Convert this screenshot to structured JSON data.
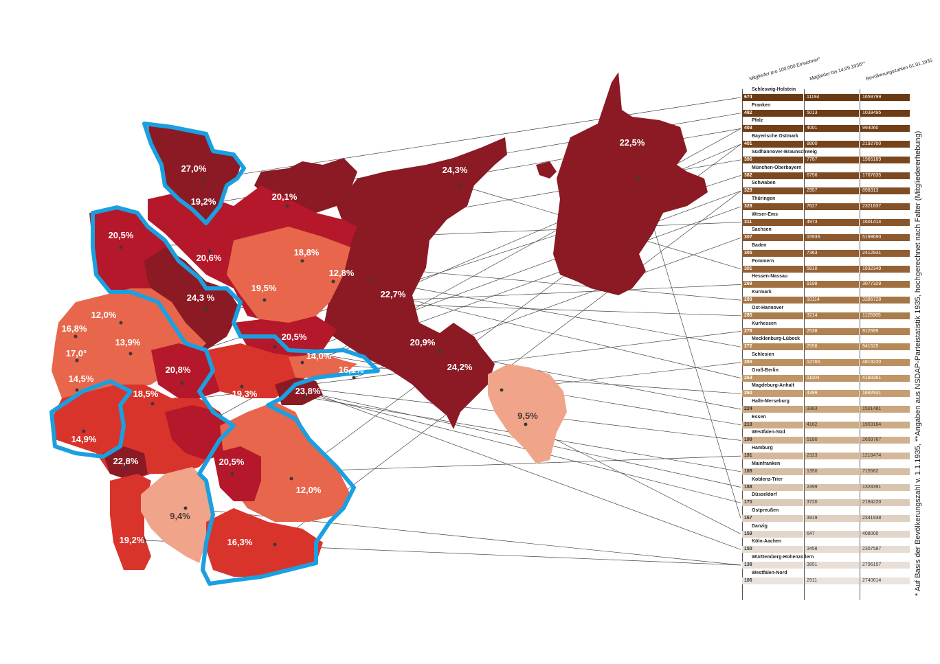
{
  "legend": {
    "col1_header": "Mitglieder pro 100.000 Einwohner*",
    "col2_header": "Mitglieder bis 14.09.1930**",
    "col3_header": "Bevölkerungszahlen 01.01.1935",
    "rows": [
      {
        "name": "Schleswig-Holstein",
        "per100k": "674",
        "members": "11194",
        "population": "1659799",
        "color": "#6b3a12"
      },
      {
        "name": "Franken",
        "per100k": "482",
        "members": "5013",
        "population": "1039495",
        "color": "#6e3d15"
      },
      {
        "name": "Pfalz",
        "per100k": "403",
        "members": "4001",
        "population": "993060",
        "color": "#723f17"
      },
      {
        "name": "Bayerische Ostmark",
        "per100k": "401",
        "members": "8800",
        "population": "2192700",
        "color": "#76431a"
      },
      {
        "name": "Südhannover-Braunschweig",
        "per100k": "396",
        "members": "7787",
        "population": "1965189",
        "color": "#7a461d"
      },
      {
        "name": "München-Oberbayern",
        "per100k": "382",
        "members": "6756",
        "population": "1767635",
        "color": "#7d4920"
      },
      {
        "name": "Schwaben",
        "per100k": "329",
        "members": "2957",
        "population": "898313",
        "color": "#814d23"
      },
      {
        "name": "Thüringen",
        "per100k": "328",
        "members": "7627",
        "population": "2321837",
        "color": "#855126"
      },
      {
        "name": "Weser-Ems",
        "per100k": "311",
        "members": "4973",
        "population": "1601414",
        "color": "#89552a"
      },
      {
        "name": "Sachsen",
        "per100k": "307",
        "members": "15936",
        "population": "5198690",
        "color": "#8d592e"
      },
      {
        "name": "Baden",
        "per100k": "305",
        "members": "7363",
        "population": "2412931",
        "color": "#915d32"
      },
      {
        "name": "Pommern",
        "per100k": "301",
        "members": "5810",
        "population": "1932349",
        "color": "#956136"
      },
      {
        "name": "Hessen-Nassau",
        "per100k": "299",
        "members": "9198",
        "population": "3077329",
        "color": "#a0703f"
      },
      {
        "name": "Kurmark",
        "per100k": "299",
        "members": "10114",
        "population": "3385728",
        "color": "#a57545"
      },
      {
        "name": "Ost-Hannover",
        "per100k": "285",
        "members": "3214",
        "population": "1125965",
        "color": "#aa7b4b"
      },
      {
        "name": "Kurhessen",
        "per100k": "278",
        "members": "2538",
        "population": "912689",
        "color": "#b08151"
      },
      {
        "name": "Mecklenburg-Lübeck",
        "per100k": "272",
        "members": "2556",
        "population": "941525",
        "color": "#b58858"
      },
      {
        "name": "Schlesien",
        "per100k": "265",
        "members": "12765",
        "population": "4819220",
        "color": "#bb8f60"
      },
      {
        "name": "Groß-Berlin",
        "per100k": "263",
        "members": "11004",
        "population": "4189361",
        "color": "#c09668"
      },
      {
        "name": "Magdeburg-Anhalt",
        "per100k": "260",
        "members": "4399",
        "population": "1692931",
        "color": "#c59d70"
      },
      {
        "name": "Halle-Merseburg",
        "per100k": "224",
        "members": "3363",
        "population": "1501481",
        "color": "#c9a67c"
      },
      {
        "name": "Essen",
        "per100k": "219",
        "members": "4162",
        "population": "1903164",
        "color": "#ccac86"
      },
      {
        "name": "Westfalen-Süd",
        "per100k": "198",
        "members": "5180",
        "population": "2609787",
        "color": "#d0b290"
      },
      {
        "name": "Hamburg",
        "per100k": "191",
        "members": "2323",
        "population": "1218474",
        "color": "#d3b89a"
      },
      {
        "name": "Mainfranken",
        "per100k": "189",
        "members": "1350",
        "population": "715562",
        "color": "#d6bea4"
      },
      {
        "name": "Koblenz-Trier",
        "per100k": "188",
        "members": "2499",
        "population": "1328391",
        "color": "#d9c4ae"
      },
      {
        "name": "Düsseldorf",
        "per100k": "170",
        "members": "3720",
        "population": "2194220",
        "color": "#dccab8"
      },
      {
        "name": "Ostpreußen",
        "per100k": "167",
        "members": "3919",
        "population": "2341938",
        "color": "#dfd0c2"
      },
      {
        "name": "Danzig",
        "per100k": "159",
        "members": "647",
        "population": "408000",
        "color": "#e2d6ca"
      },
      {
        "name": "Köln-Aachen",
        "per100k": "150",
        "members": "3458",
        "population": "2307587",
        "color": "#e5dcd2"
      },
      {
        "name": "Württemberg-Hohenzollern",
        "per100k": "138",
        "members": "3851",
        "population": "2796157",
        "color": "#e8e0d8"
      },
      {
        "name": "Westfalen-Nord",
        "per100k": "106",
        "members": "2911",
        "population": "2740614",
        "color": "#ebe4de"
      }
    ]
  },
  "map": {
    "percent_labels": [
      "27,0%",
      "19,2%",
      "20,1%",
      "24,3%",
      "22,5%",
      "20,5%",
      "20,6%",
      "18,8%",
      "12,8%",
      "19,5%",
      "24,3 %",
      "22,7%",
      "12,0%",
      "16,8%",
      "13,9%",
      "17,0°",
      "20,5%",
      "20,9%",
      "14,0%",
      "16,1%",
      "24,2%",
      "20,8%",
      "19,3%",
      "23,8%",
      "14,5%",
      "18,5%",
      "9,5%",
      "14,9%",
      "22,8%",
      "20,5%",
      "12,0%",
      "9,4%",
      "19,2%",
      "16,3%"
    ],
    "colors": {
      "darkest": "#8b1a24",
      "dark": "#b5182b",
      "medium": "#d9342c",
      "light": "#e8664b",
      "lighter": "#f0a58a",
      "border": "#1aa0e0"
    }
  },
  "footnote": "* Auf Basis der Bevölkerungszahl v. 1.1.1935, **Angaben aus NSDAP-Parteistatistik 1935, hochgerechnet nach Falter (Mitgliedererhebung)"
}
